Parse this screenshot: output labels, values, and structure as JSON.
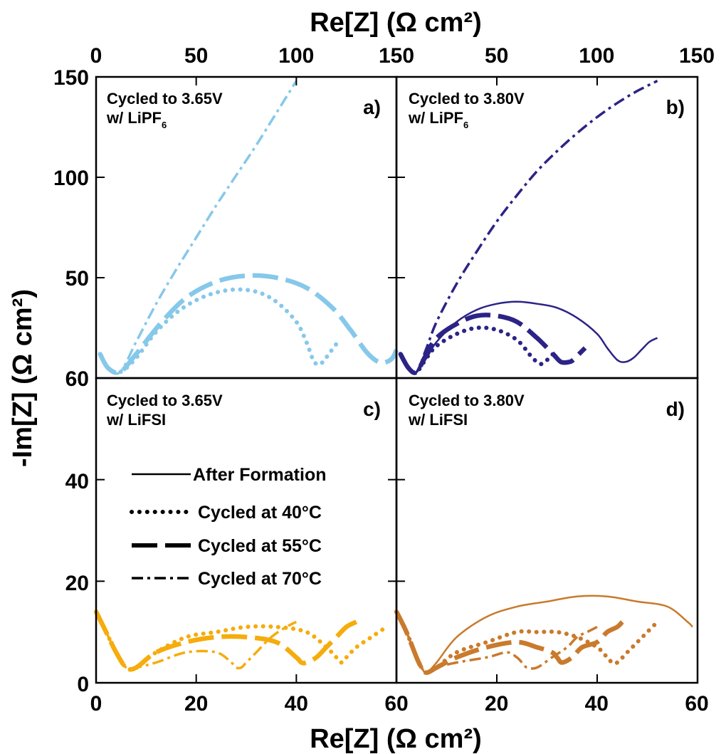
{
  "figure": {
    "top_axis_label": "Re[Z] (Ω cm²)",
    "bottom_axis_label": "Re[Z] (Ω cm²)",
    "left_axis_label": "-Im[Z] (Ω cm²)"
  },
  "legend": {
    "entries": [
      {
        "label": "After Formation",
        "style": "solid"
      },
      {
        "label": "Cycled at 40°C",
        "style": "dotted"
      },
      {
        "label": "Cycled at 55°C",
        "style": "dashed"
      },
      {
        "label": "Cycled at 70°C",
        "style": "dashdot"
      }
    ]
  },
  "colors": {
    "a": "#86c8ea",
    "b": "#2c2386",
    "c": "#f5ac0d",
    "d": "#c97a2c"
  },
  "chart_data": [
    {
      "type": "line",
      "panel": "a)",
      "annotation_line1": "Cycled to 3.65V",
      "annotation_line2": "w/ LiPF",
      "annotation_subscript": "6",
      "xlabel": "Re[Z] (Ω cm²)",
      "ylabel": "-Im[Z] (Ω cm²)",
      "xlim": [
        0,
        150
      ],
      "ylim": [
        0,
        150
      ],
      "xticks": [
        "0",
        "50",
        "100",
        "150"
      ],
      "yticks": [
        "150",
        "100",
        "50"
      ],
      "series": [
        {
          "style": "dotted",
          "x": [
            2,
            6,
            12,
            20,
            30,
            42,
            55,
            68,
            80,
            90,
            100,
            105,
            108,
            110,
            112,
            114,
            117,
            120
          ],
          "y": [
            12,
            5,
            3,
            10,
            23,
            34,
            41,
            44,
            43,
            38,
            28,
            18,
            10,
            7,
            7,
            9,
            13,
            17
          ]
        },
        {
          "style": "dashed",
          "x": [
            2,
            6,
            12,
            20,
            32,
            45,
            60,
            75,
            90,
            105,
            118,
            127,
            135,
            141,
            145,
            148,
            150
          ],
          "y": [
            12,
            5,
            3,
            12,
            27,
            40,
            48,
            51,
            50,
            45,
            35,
            24,
            13,
            8,
            8,
            10,
            14
          ]
        },
        {
          "style": "dashdot",
          "x": [
            2,
            6,
            12,
            20,
            30,
            40,
            50,
            60,
            70,
            80,
            90,
            100
          ],
          "y": [
            12,
            5,
            3,
            18,
            37,
            54,
            70,
            86,
            101,
            116,
            132,
            148
          ]
        }
      ]
    },
    {
      "type": "line",
      "panel": "b)",
      "annotation_line1": "Cycled to 3.80V",
      "annotation_line2": "w/ LiPF",
      "annotation_subscript": "6",
      "xlim": [
        0,
        150
      ],
      "ylim": [
        0,
        150
      ],
      "xticks": [
        "50",
        "100",
        "150"
      ],
      "series": [
        {
          "style": "solid",
          "x": [
            2,
            6,
            10,
            15,
            20,
            30,
            40,
            50,
            60,
            70,
            80,
            90,
            100,
            105,
            110,
            114,
            118,
            122,
            126,
            130
          ],
          "y": [
            12,
            5,
            3,
            10,
            18,
            28,
            34,
            37,
            38,
            37,
            35,
            30,
            22,
            15,
            9,
            8,
            10,
            14,
            18,
            20
          ]
        },
        {
          "style": "dotted",
          "x": [
            2,
            6,
            10,
            15,
            20,
            30,
            40,
            50,
            60,
            67,
            70,
            72,
            74,
            76,
            78
          ],
          "y": [
            12,
            5,
            3,
            10,
            16,
            22,
            25,
            24,
            19,
            11,
            8,
            7,
            8,
            10,
            12
          ]
        },
        {
          "style": "dashed",
          "x": [
            2,
            6,
            10,
            15,
            20,
            30,
            40,
            50,
            60,
            70,
            78,
            82,
            86,
            88,
            91,
            94
          ],
          "y": [
            12,
            5,
            3,
            12,
            20,
            27,
            31,
            31,
            28,
            20,
            12,
            8,
            8,
            9,
            12,
            15
          ]
        },
        {
          "style": "dashdot",
          "x": [
            2,
            6,
            10,
            15,
            20,
            30,
            40,
            50,
            60,
            70,
            80,
            90,
            100,
            110,
            120,
            130
          ],
          "y": [
            12,
            5,
            3,
            15,
            28,
            47,
            63,
            78,
            91,
            103,
            113,
            122,
            130,
            137,
            143,
            148
          ]
        }
      ]
    },
    {
      "type": "line",
      "panel": "c)",
      "annotation_line1": "Cycled to 3.65V",
      "annotation_line2": "w/ LiFSI",
      "xlabel": "Re[Z] (Ω cm²)",
      "xlim": [
        0,
        60
      ],
      "ylim": [
        0,
        60
      ],
      "xticks": [
        "0",
        "20",
        "40",
        "60"
      ],
      "yticks": [
        "60",
        "40",
        "20",
        "0"
      ],
      "series": [
        {
          "style": "dotted",
          "x": [
            0,
            2,
            4,
            6,
            8,
            12,
            18,
            24,
            30,
            36,
            42,
            46,
            48,
            49,
            50,
            52,
            55,
            58
          ],
          "y": [
            14,
            10,
            6,
            3,
            3,
            6,
            9,
            10,
            11,
            11,
            10,
            7,
            5,
            4,
            5,
            7,
            9,
            11
          ]
        },
        {
          "style": "dashed",
          "x": [
            0,
            2,
            4,
            6,
            8,
            12,
            18,
            24,
            30,
            36,
            40,
            41,
            42,
            44,
            46,
            48,
            50,
            52
          ],
          "y": [
            14,
            10,
            6,
            3,
            3,
            6,
            8,
            9,
            9,
            8,
            5,
            4,
            4,
            5,
            7,
            9,
            11,
            12
          ]
        },
        {
          "style": "dashdot",
          "x": [
            0,
            2,
            4,
            6,
            8,
            12,
            18,
            24,
            27,
            28,
            29,
            30,
            32,
            35,
            38,
            40
          ],
          "y": [
            14,
            10,
            6,
            3,
            3,
            4,
            6,
            6,
            4,
            3,
            3,
            4,
            6,
            9,
            11,
            12
          ]
        }
      ]
    },
    {
      "type": "line",
      "panel": "d)",
      "annotation_line1": "Cycled to 3.80V",
      "annotation_line2": "w/ LiFSI",
      "xlim": [
        0,
        60
      ],
      "ylim": [
        0,
        60
      ],
      "xticks": [
        "20",
        "40",
        "60"
      ],
      "series": [
        {
          "style": "solid",
          "x": [
            0,
            2,
            4,
            5,
            6,
            8,
            12,
            18,
            24,
            30,
            36,
            42,
            48,
            54,
            58,
            59
          ],
          "y": [
            14,
            10,
            5,
            3,
            2,
            4,
            9,
            13,
            15,
            16,
            17,
            17,
            16,
            15,
            12,
            11
          ]
        },
        {
          "style": "dotted",
          "x": [
            0,
            2,
            4,
            5,
            6,
            8,
            12,
            18,
            24,
            28,
            32,
            36,
            40,
            42,
            43,
            44,
            46,
            48,
            50,
            52
          ],
          "y": [
            14,
            10,
            5,
            3,
            2,
            3,
            6,
            8,
            10,
            10,
            10,
            9,
            7,
            5,
            4,
            4,
            6,
            8,
            10,
            12
          ]
        },
        {
          "style": "dashed",
          "x": [
            0,
            2,
            4,
            5,
            6,
            8,
            12,
            18,
            24,
            28,
            31,
            32,
            33,
            35,
            37,
            40,
            42,
            44,
            45
          ],
          "y": [
            14,
            10,
            5,
            3,
            2,
            3,
            5,
            7,
            8,
            7,
            6,
            5,
            4,
            5,
            7,
            8,
            10,
            11,
            12
          ]
        },
        {
          "style": "dashdot",
          "x": [
            0,
            2,
            4,
            5,
            6,
            8,
            12,
            18,
            22,
            24,
            25,
            26,
            28,
            31,
            34,
            36,
            38,
            40
          ],
          "y": [
            14,
            10,
            5,
            3,
            2,
            3,
            4,
            5,
            6,
            5,
            4,
            3,
            3,
            5,
            7,
            9,
            10,
            11
          ]
        }
      ]
    }
  ]
}
